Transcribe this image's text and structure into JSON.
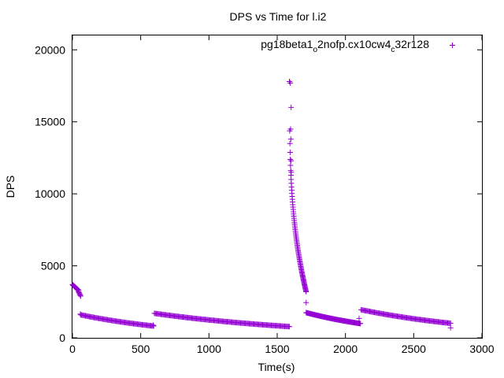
{
  "chart_data": {
    "type": "scatter",
    "title": "DPS vs Time for l.i2",
    "xlabel": "Time(s)",
    "ylabel": "DPS",
    "xlim": [
      0,
      3000
    ],
    "ylim": [
      0,
      21000
    ],
    "xticks": [
      0,
      500,
      1000,
      1500,
      2000,
      2500,
      3000
    ],
    "yticks": [
      0,
      5000,
      10000,
      15000,
      20000
    ],
    "grid": false,
    "legend_position": "top-right",
    "marker": "plus",
    "color": "#9400d3",
    "series": [
      {
        "name_parts": {
          "base": "pg18beta1",
          "sub1": "o",
          "mid": "2nofp.cx10cw4",
          "sub2": "c",
          "end": "32r128"
        },
        "segments": [
          {
            "x_start": 0,
            "x_end": 45,
            "y_start": 3700,
            "y_end": 3300,
            "step": 3
          },
          {
            "x_start": 45,
            "x_end": 60,
            "y_start": 3200,
            "y_end": 2900,
            "step": 3
          },
          {
            "x_start": 60,
            "x_end": 595,
            "y_start": 1600,
            "y_end": 820,
            "step": 7
          },
          {
            "x_start": 600,
            "x_end": 1590,
            "y_start": 1700,
            "y_end": 780,
            "step": 7
          },
          {
            "x_start": 1590,
            "x_end": 1712,
            "y_start": 17800,
            "y_end": 3200,
            "step": 1.5,
            "curve": 0.33
          },
          {
            "x_start": 1712,
            "x_end": 2110,
            "y_start": 1750,
            "y_end": 990,
            "step": 5
          },
          {
            "x_start": 2115,
            "x_end": 2770,
            "y_start": 1950,
            "y_end": 1010,
            "step": 7
          }
        ],
        "points": [
          [
            1590,
            17800
          ],
          [
            1596,
            17700
          ],
          [
            1602,
            16000
          ],
          [
            1598,
            14500
          ],
          [
            1600,
            13800
          ],
          [
            1602,
            12300
          ],
          [
            1603,
            11500
          ],
          [
            1712,
            2450
          ],
          [
            2100,
            1350
          ],
          [
            592,
            880
          ],
          [
            2770,
            700
          ],
          [
            58,
            1650
          ]
        ]
      }
    ]
  }
}
